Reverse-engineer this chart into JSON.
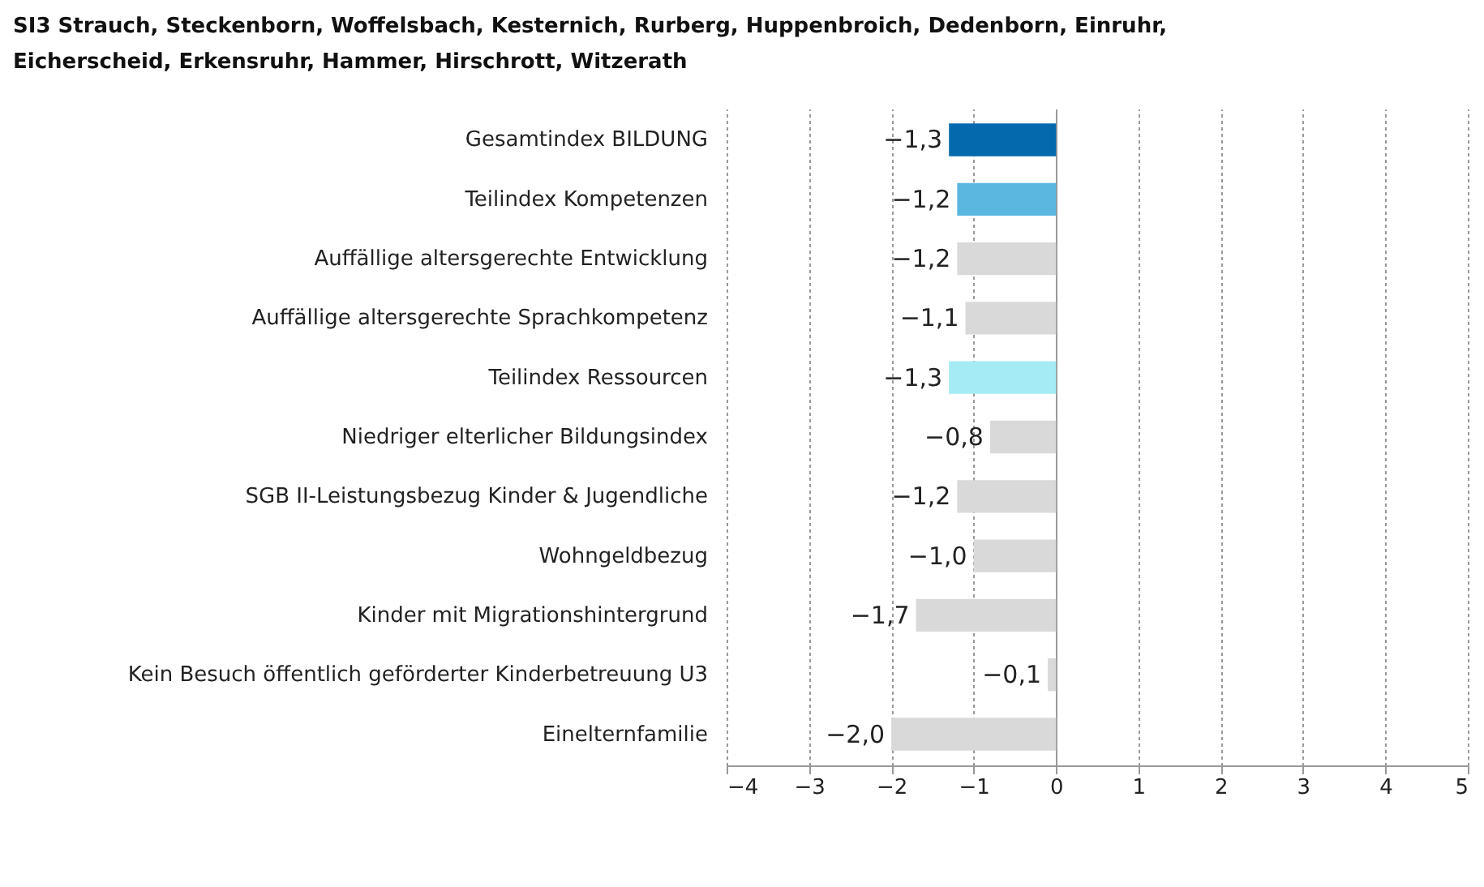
{
  "chart_data": {
    "type": "bar",
    "orientation": "horizontal",
    "title": "SI3 Strauch, Steckenborn, Woffelsbach, Kesternich, Rurberg, Huppenbroich, Dedenborn, Einruhr, Eicherscheid, Erkensruhr, Hammer, Hirschrott, Witzerath",
    "categories": [
      "Gesamtindex BILDUNG",
      "Teilindex Kompetenzen",
      "Auffällige altersgerechte Entwicklung",
      "Auffällige altersgerechte Sprachkompetenz",
      "Teilindex Ressourcen",
      "Niedriger elterlicher Bildungsindex",
      "SGB II-Leistungsbezug Kinder & Jugendliche",
      "Wohngeldbezug",
      "Kinder mit Migrationshintergrund",
      "Kein Besuch öffentlich geförderter Kinderbetreuung U3",
      "Einelternfamilie"
    ],
    "values": [
      -1.3,
      -1.2,
      -1.2,
      -1.1,
      -1.3,
      -0.8,
      -1.2,
      -1.0,
      -1.7,
      -0.1,
      -2.0
    ],
    "value_labels": [
      "−1,3",
      "−1,2",
      "−1,2",
      "−1,1",
      "−1,3",
      "−0,8",
      "−1,2",
      "−1,0",
      "−1,7",
      "−0,1",
      "−2,0"
    ],
    "colors": [
      "#0569ad",
      "#5cb7e0",
      "#d9d9d9",
      "#d9d9d9",
      "#a5ebf5",
      "#d9d9d9",
      "#d9d9d9",
      "#d9d9d9",
      "#d9d9d9",
      "#d9d9d9",
      "#d9d9d9"
    ],
    "xlim": [
      -4,
      5
    ],
    "xticks": [
      -4,
      -3,
      -2,
      -1,
      0,
      1,
      2,
      3,
      4,
      5
    ],
    "grid": "x"
  }
}
